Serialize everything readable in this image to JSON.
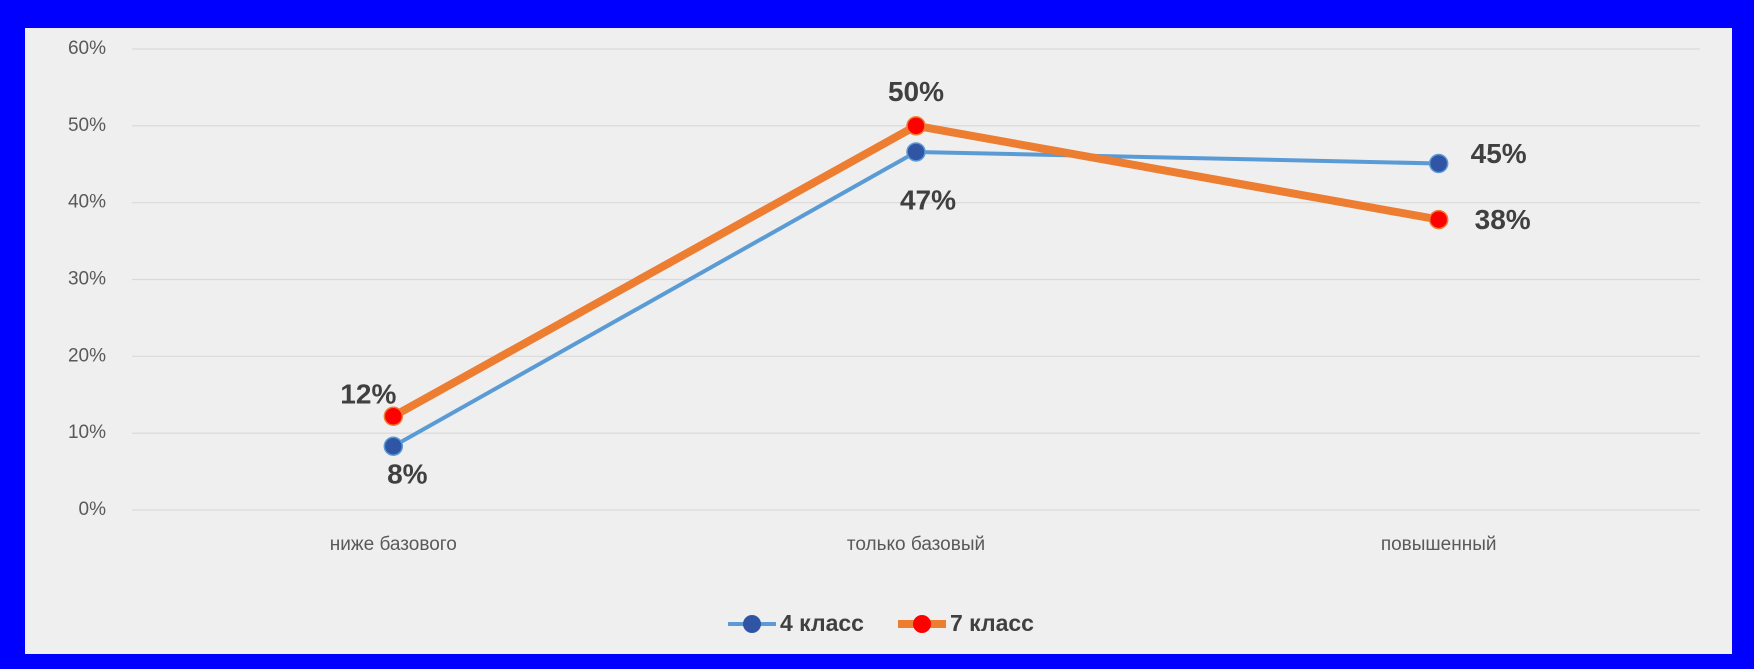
{
  "chart_data": {
    "type": "line",
    "categories": [
      "ниже базового",
      "только базовый",
      "повышенный"
    ],
    "series": [
      {
        "name": "4 класс",
        "color": "#5b9bd5",
        "marker_color": "#2f55a4",
        "values": [
          8.3,
          46.6,
          45.1
        ],
        "value_labels": [
          "8%",
          "47%",
          "45%"
        ]
      },
      {
        "name": "7 класс",
        "color": "#ed7d31",
        "marker_color": "#ff0000",
        "values": [
          12.2,
          50,
          37.8
        ],
        "value_labels": [
          "12%",
          "50%",
          "38%"
        ]
      }
    ],
    "ylim": [
      0,
      60
    ],
    "yticks": [
      {
        "value": 0,
        "label": "0%"
      },
      {
        "value": 10,
        "label": "10%"
      },
      {
        "value": 20,
        "label": "20%"
      },
      {
        "value": 30,
        "label": "30%"
      },
      {
        "value": 40,
        "label": "40%"
      },
      {
        "value": 50,
        "label": "50%"
      },
      {
        "value": 60,
        "label": "60%"
      }
    ],
    "grid": true,
    "legend": "bottom"
  }
}
